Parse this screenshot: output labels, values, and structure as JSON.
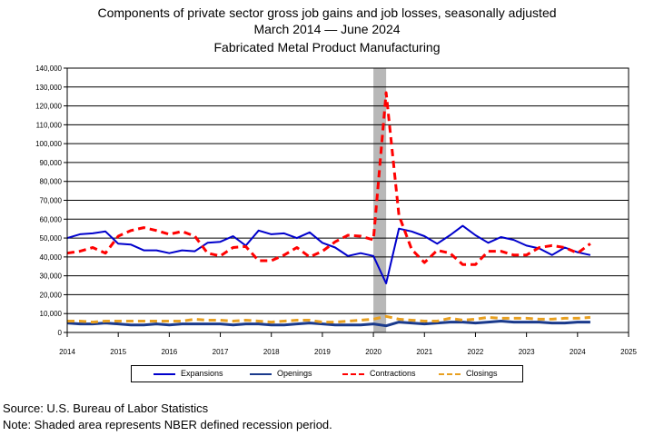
{
  "title": {
    "line1": "Components of private sector gross job gains and job losses, seasonally adjusted",
    "line2": "March 2014  — June 2024",
    "line3": "Fabricated Metal Product Manufacturing"
  },
  "footer": {
    "source": "Source: U.S. Bureau of Labor Statistics",
    "note": "Note: Shaded area represents NBER defined recession period."
  },
  "chart_data": {
    "type": "line",
    "title": "Components of private sector gross job gains and job losses, seasonally adjusted",
    "subtitle": "March 2014  — June 2024",
    "xlabel": "",
    "ylabel": "",
    "xlim": [
      2014,
      2025
    ],
    "ylim": [
      0,
      140000
    ],
    "xticks": [
      "2014",
      "2015",
      "2016",
      "2017",
      "2018",
      "2019",
      "2020",
      "2021",
      "2022",
      "2023",
      "2024",
      "2025"
    ],
    "yticks": [
      "0",
      "10,000",
      "20,000",
      "30,000",
      "40,000",
      "50,000",
      "60,000",
      "70,000",
      "80,000",
      "90,000",
      "100,000",
      "110,000",
      "120,000",
      "130,000",
      "140,000"
    ],
    "grid": "horizontal",
    "legend": "bottom",
    "recession": {
      "start": 2020.0,
      "end": 2020.25,
      "color": "#b8b8b8"
    },
    "x": [
      2014.0,
      2014.25,
      2014.5,
      2014.75,
      2015.0,
      2015.25,
      2015.5,
      2015.75,
      2016.0,
      2016.25,
      2016.5,
      2016.75,
      2017.0,
      2017.25,
      2017.5,
      2017.75,
      2018.0,
      2018.25,
      2018.5,
      2018.75,
      2019.0,
      2019.25,
      2019.5,
      2019.75,
      2020.0,
      2020.25,
      2020.5,
      2020.75,
      2021.0,
      2021.25,
      2021.5,
      2021.75,
      2022.0,
      2022.25,
      2022.5,
      2022.75,
      2023.0,
      2023.25,
      2023.5,
      2023.75,
      2024.0,
      2024.25
    ],
    "series": [
      {
        "name": "Expansions",
        "color": "#0000cc",
        "dash": "solid",
        "width": 2,
        "values": [
          50000,
          52000,
          52500,
          53500,
          47000,
          46500,
          43500,
          43500,
          42000,
          43500,
          43000,
          47500,
          48000,
          51000,
          46000,
          54000,
          52000,
          52500,
          50000,
          53000,
          47500,
          45000,
          40500,
          42000,
          40500,
          26000,
          55000,
          53500,
          51000,
          47000,
          51500,
          56500,
          51500,
          47500,
          50500,
          49000,
          46000,
          44500,
          41000,
          45000,
          42500,
          41000
        ]
      },
      {
        "name": "Openings",
        "color": "#1a3a8c",
        "dash": "solid",
        "width": 3,
        "values": [
          5000,
          4500,
          4500,
          5000,
          4500,
          4000,
          4000,
          4500,
          4000,
          4500,
          4500,
          4500,
          4500,
          4000,
          4500,
          4500,
          4000,
          4000,
          4500,
          5000,
          4500,
          4000,
          4000,
          4000,
          4500,
          3500,
          5500,
          5000,
          4500,
          5000,
          5500,
          5500,
          5000,
          5500,
          6000,
          5500,
          5500,
          5500,
          5000,
          5000,
          5500,
          5500
        ]
      },
      {
        "name": "Contractions",
        "color": "#ff0000",
        "dash": "8,5",
        "width": 3,
        "values": [
          42000,
          43000,
          45000,
          42000,
          51000,
          54000,
          55500,
          54000,
          52000,
          53500,
          51000,
          42000,
          40500,
          45000,
          45500,
          38000,
          38000,
          41000,
          45000,
          40000,
          43000,
          48000,
          51500,
          51000,
          49000,
          127000,
          62000,
          44000,
          37000,
          43500,
          42000,
          36000,
          36000,
          43000,
          43000,
          41000,
          41000,
          45000,
          46000,
          45000,
          42000,
          47000
        ]
      },
      {
        "name": "Closings",
        "color": "#e8a020",
        "dash": "8,5",
        "width": 3,
        "values": [
          6000,
          6000,
          5500,
          6000,
          6000,
          6000,
          6000,
          6000,
          6000,
          6000,
          7000,
          6500,
          6500,
          6000,
          6500,
          6000,
          5500,
          6000,
          6500,
          6500,
          5500,
          5500,
          6000,
          6500,
          7000,
          8500,
          7000,
          6500,
          6000,
          6000,
          7500,
          6500,
          7000,
          8000,
          7500,
          7500,
          7500,
          7000,
          7000,
          7500,
          7500,
          8000
        ]
      }
    ]
  }
}
